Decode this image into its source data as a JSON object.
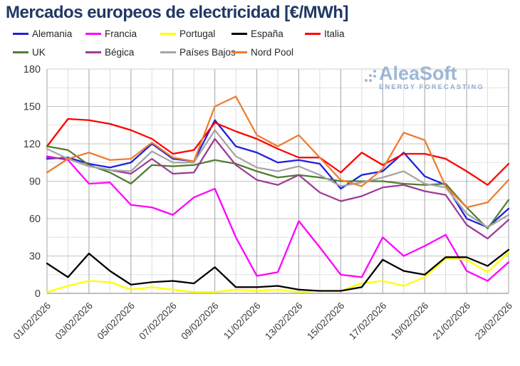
{
  "title": "Mercados europeos de electricidad [€/MWh]",
  "watermark": {
    "brand": "AleaSoft",
    "tagline": "ENERGY FORECASTING",
    "color": "#8fabd0"
  },
  "title_color": "#203864",
  "chart_data": {
    "type": "line",
    "title": "Mercados europeos de electricidad [€/MWh]",
    "xlabel": "",
    "ylabel": "",
    "ylim": [
      0,
      180
    ],
    "y_tick": 30,
    "y_minor": 15,
    "grid": true,
    "legend_position": "top",
    "x_label_rotation": -45,
    "x_label_step": 2,
    "categories": [
      "01/02/2026",
      "02/02/2026",
      "03/02/2026",
      "04/02/2026",
      "05/02/2026",
      "06/02/2026",
      "07/02/2026",
      "08/02/2026",
      "09/02/2026",
      "10/02/2026",
      "11/02/2026",
      "12/02/2026",
      "13/02/2026",
      "14/02/2026",
      "15/02/2026",
      "16/02/2026",
      "17/02/2026",
      "18/02/2026",
      "19/02/2026",
      "20/02/2026",
      "21/02/2026",
      "22/02/2026",
      "23/02/2026"
    ],
    "series": [
      {
        "name": "Alemania",
        "color": "#2020df",
        "values": [
          108,
          109,
          104,
          101,
          105,
          120,
          108,
          106,
          139,
          118,
          113,
          105,
          107,
          104,
          84,
          95,
          98,
          113,
          94,
          87,
          60,
          53,
          68
        ]
      },
      {
        "name": "Francia",
        "color": "#ff00ff",
        "values": [
          110,
          107,
          88,
          89,
          71,
          69,
          63,
          77,
          84,
          45,
          14,
          17,
          58,
          37,
          15,
          13,
          45,
          30,
          38,
          47,
          18,
          10,
          25
        ]
      },
      {
        "name": "Portugal",
        "color": "#ffff00",
        "values": [
          1,
          6,
          10,
          9,
          3,
          5,
          3,
          1,
          1,
          3,
          2,
          3,
          1,
          2,
          2,
          8,
          10,
          6,
          13,
          28,
          27,
          17,
          33
        ]
      },
      {
        "name": "España",
        "color": "#000000",
        "values": [
          24,
          13,
          32,
          18,
          7,
          9,
          10,
          8,
          21,
          5,
          5,
          6,
          3,
          2,
          2,
          5,
          27,
          18,
          15,
          29,
          29,
          22,
          35
        ]
      },
      {
        "name": "Italia",
        "color": "#ff0000",
        "values": [
          118,
          140,
          139,
          136,
          131,
          124,
          112,
          115,
          137,
          130,
          124,
          116,
          109,
          109,
          97,
          113,
          103,
          112,
          112,
          108,
          98,
          87,
          104
        ]
      },
      {
        "name": "UK",
        "color": "#507e32",
        "values": [
          118,
          115,
          103,
          97,
          88,
          103,
          102,
          103,
          107,
          104,
          98,
          93,
          95,
          93,
          90,
          90,
          90,
          88,
          87,
          88,
          69,
          52,
          75
        ]
      },
      {
        "name": "Bégica",
        "color": "#9c3d97",
        "values": [
          109,
          108,
          102,
          99,
          96,
          108,
          96,
          97,
          124,
          103,
          91,
          87,
          95,
          81,
          74,
          78,
          85,
          87,
          82,
          79,
          55,
          44,
          59
        ]
      },
      {
        "name": "Países Bajos",
        "color": "#a6a6a6",
        "values": [
          116,
          108,
          102,
          99,
          98,
          114,
          105,
          105,
          131,
          110,
          101,
          98,
          102,
          95,
          86,
          89,
          93,
          98,
          88,
          85,
          64,
          53,
          63
        ]
      },
      {
        "name": "Nord Pool",
        "color": "#ed7d31",
        "values": [
          97,
          108,
          113,
          107,
          108,
          121,
          109,
          106,
          150,
          158,
          127,
          118,
          127,
          109,
          91,
          86,
          100,
          129,
          123,
          86,
          69,
          73,
          91
        ]
      }
    ]
  },
  "axes": {
    "y_labels": [
      "180",
      "150",
      "120",
      "90",
      "60",
      "30",
      "0"
    ],
    "x_labels_shown": [
      "01/02/2026",
      "03/02/2026",
      "05/02/2026",
      "07/02/2026",
      "09/02/2026",
      "11/02/2026",
      "13/02/2026",
      "15/02/2026",
      "17/02/2026",
      "19/02/2026",
      "21/02/2026",
      "23/02/2026"
    ]
  }
}
